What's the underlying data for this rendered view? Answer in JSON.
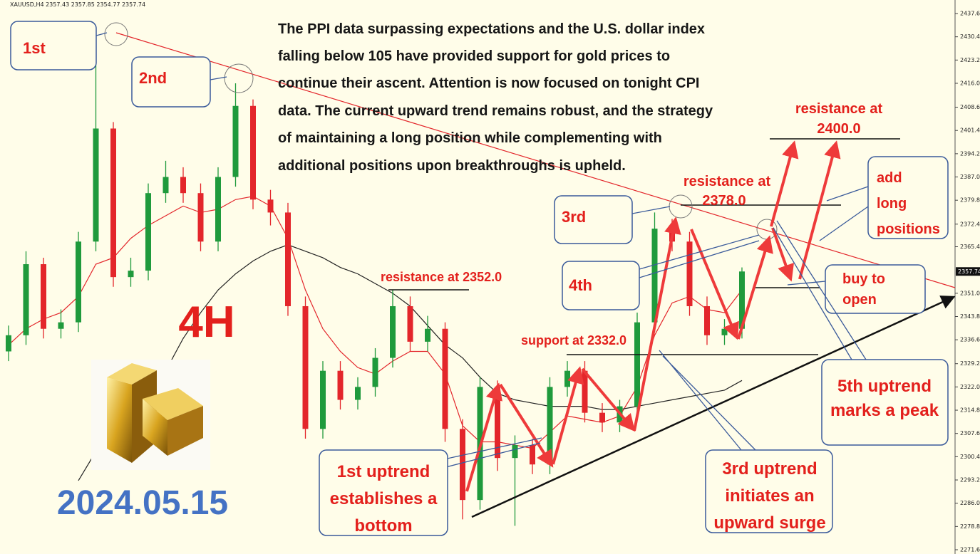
{
  "chart_data": {
    "type": "candlestick",
    "header": "XAUUSD,H4  2357.43 2357.85 2354.77 2357.74",
    "open": [
      2333,
      2338,
      2360,
      2340,
      2342,
      2367,
      2402,
      2356,
      2358,
      2382,
      2387,
      2382,
      2367,
      2387,
      2409,
      2380,
      2376,
      2347,
      2309,
      2327,
      2318,
      2322,
      2331,
      2347,
      2336,
      2340,
      2309,
      2287,
      2322,
      2300,
      2304,
      2298,
      2322,
      2327,
      2314,
      2311,
      2316,
      2342,
      2371,
      2367,
      2347,
      2338,
      2340
    ],
    "high": [
      2341,
      2364,
      2362,
      2346,
      2370,
      2431,
      2404,
      2362,
      2385,
      2392,
      2390,
      2385,
      2390,
      2416,
      2411,
      2383,
      2379,
      2350,
      2330,
      2330,
      2325,
      2334,
      2352,
      2350,
      2344,
      2342,
      2312,
      2325,
      2324,
      2307,
      2306,
      2325,
      2330,
      2330,
      2317,
      2318,
      2345,
      2376,
      2374,
      2370,
      2350,
      2343,
      2359
    ],
    "low": [
      2330,
      2335,
      2337,
      2337,
      2339,
      2364,
      2353,
      2353,
      2355,
      2379,
      2379,
      2364,
      2364,
      2384,
      2377,
      2372,
      2344,
      2306,
      2306,
      2315,
      2315,
      2319,
      2328,
      2333,
      2333,
      2305,
      2281,
      2284,
      2296,
      2279,
      2295,
      2295,
      2319,
      2311,
      2308,
      2308,
      2313,
      2339,
      2364,
      2344,
      2335,
      2335,
      2337
    ],
    "close": [
      2338,
      2360,
      2340,
      2342,
      2367,
      2402,
      2356,
      2358,
      2382,
      2387,
      2382,
      2367,
      2387,
      2409,
      2380,
      2376,
      2347,
      2309,
      2327,
      2318,
      2322,
      2331,
      2347,
      2336,
      2340,
      2309,
      2287,
      2322,
      2300,
      2304,
      2298,
      2322,
      2327,
      2314,
      2311,
      2316,
      2342,
      2371,
      2367,
      2347,
      2338,
      2340,
      2357.74
    ],
    "up_color": "#1f9a3c",
    "down_color": "#e3262b",
    "lines": [
      {
        "color": "#e3262b",
        "values": [
          2335,
          2340,
          2343,
          2345,
          2350,
          2360,
          2362,
          2368,
          2372,
          2375,
          2378,
          2376,
          2377,
          2380,
          2381,
          2378,
          2368,
          2352,
          2340,
          2333,
          2328,
          2326,
          2330,
          2333,
          2333,
          2326,
          2310,
          2305,
          2305,
          2304,
          2303,
          2308,
          2313,
          2312,
          2311,
          2313,
          2322,
          2338,
          2348,
          2350,
          2346,
          2345,
          2352
        ]
      },
      {
        "color": "#222222",
        "values": [
          null,
          null,
          null,
          null,
          2293,
          2302,
          2307,
          2314,
          2320,
          2327,
          2337,
          2345,
          2352,
          2357,
          2361,
          2364,
          2366,
          2364,
          2362,
          2359,
          2357,
          2354,
          2351,
          2347,
          2341,
          2335,
          2331,
          2325,
          2320,
          2318,
          2317,
          2316,
          2316,
          2316,
          2315,
          2315,
          2316,
          2317,
          2318,
          2319,
          2320,
          2321,
          2324
        ]
      }
    ],
    "last_price": 2357.74,
    "ylim": [
      2271.6,
      2437.6
    ],
    "yticks": [
      {
        "value": 2437.6,
        "label": "2437.60"
      },
      {
        "value": 2430.4,
        "label": "2430.40"
      },
      {
        "value": 2423.2,
        "label": "2423.20"
      },
      {
        "value": 2416,
        "label": "2416.00"
      },
      {
        "value": 2408.6,
        "label": "2408.60"
      },
      {
        "value": 2401.4,
        "label": "2401.40"
      },
      {
        "value": 2394.2,
        "label": "2394.20"
      },
      {
        "value": 2387,
        "label": "2387.00"
      },
      {
        "value": 2379.8,
        "label": "2379.80"
      },
      {
        "value": 2372.4,
        "label": "2372.40"
      },
      {
        "value": 2365.4,
        "label": "2365.40"
      },
      {
        "value": 2351,
        "label": "2351.00"
      },
      {
        "value": 2343.8,
        "label": "2343.80"
      },
      {
        "value": 2336.6,
        "label": "2336.60"
      },
      {
        "value": 2329.2,
        "label": "2329.20"
      },
      {
        "value": 2322,
        "label": "2322.00"
      },
      {
        "value": 2314.8,
        "label": "2314.80"
      },
      {
        "value": 2307.6,
        "label": "2307.60"
      },
      {
        "value": 2300.4,
        "label": "2300.40"
      },
      {
        "value": 2293.2,
        "label": "2293.20"
      },
      {
        "value": 2286,
        "label": "2286.00"
      },
      {
        "value": 2278.8,
        "label": "2278.80"
      },
      {
        "value": 2271.6,
        "label": "2271.60"
      }
    ],
    "annotations": {
      "paragraph": [
        "The PPI data surpassing expectations and the U.S. dollar index",
        "falling below 105 have provided support for gold prices to",
        "continue their ascent. Attention is now focused on tonight CPI",
        "data. The current upward trend remains robust, and the strategy",
        "of maintaining a long position while complementing with",
        "additional positions upon breakthroughs is upheld."
      ],
      "first": "1st",
      "second": "2nd",
      "third": "3rd",
      "fourth": "4th",
      "timeframe": "4H",
      "date": "2024.05.15",
      "resistance_2352": "resistance at 2352.0",
      "support_2332": "support at 2332.0",
      "resistance_2378": [
        "resistance at",
        "2378.0"
      ],
      "resistance_2400": [
        "resistance at",
        "2400.0"
      ],
      "add_long": [
        "add",
        "long",
        "positions"
      ],
      "buy_open": [
        "buy to",
        "open"
      ],
      "uptrend_5": [
        "5th uptrend",
        "marks a peak"
      ],
      "uptrend_3": [
        "3rd uptrend",
        "initiates an",
        "upward surge"
      ],
      "uptrend_1": [
        "1st uptrend",
        "establishes a",
        "bottom"
      ]
    }
  }
}
